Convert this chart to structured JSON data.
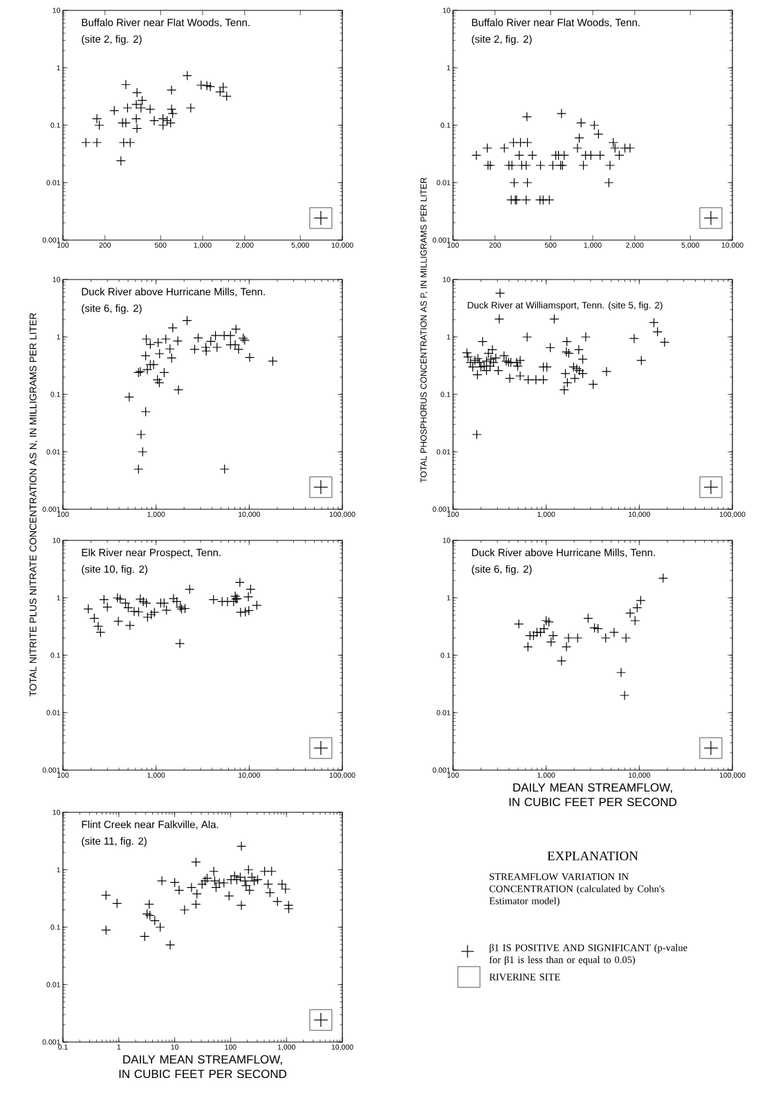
{
  "chart_data": [
    {
      "type": "scatter",
      "title": "Buffalo River near Flat Woods, Tenn.",
      "subtitle": "(site 2, fig. 2)",
      "color": "#000000",
      "marker": "cross",
      "log": "xy",
      "xlim": [
        100,
        10000
      ],
      "ylim": [
        0.001,
        10
      ],
      "xticks": [
        100,
        200,
        500,
        {
          "value": 1000,
          "label": "1,000"
        },
        {
          "value": 2000,
          "label": "2,000"
        },
        {
          "value": 5000,
          "label": "5,000"
        },
        {
          "value": 10000,
          "label": "10,000"
        }
      ],
      "yticks": [
        0.001,
        0.01,
        0.1,
        1,
        10
      ],
      "x": [
        146,
        175,
        175,
        182,
        233,
        282,
        290,
        267,
        282,
        272,
        303,
        260,
        339,
        335,
        335,
        339,
        369,
        362,
        421,
        450,
        520,
        520,
        557,
        599,
        590,
        599,
        610,
        776,
        822,
        975,
        1073,
        1135,
        1334,
        1402,
        1485
      ],
      "values": [
        0.05,
        0.05,
        0.13,
        0.1,
        0.18,
        0.51,
        0.2,
        0.11,
        0.11,
        0.05,
        0.05,
        0.024,
        0.37,
        0.23,
        0.13,
        0.088,
        0.27,
        0.2,
        0.19,
        0.12,
        0.13,
        0.1,
        0.12,
        0.41,
        0.11,
        0.19,
        0.16,
        0.73,
        0.2,
        0.5,
        0.49,
        0.47,
        0.38,
        0.46,
        0.32
      ]
    },
    {
      "type": "scatter",
      "title": "Buffalo River near Flat Woods, Tenn.",
      "subtitle": "(site 2, fig. 2)",
      "color": "#000000",
      "marker": "cross",
      "log": "xy",
      "xlim": [
        100,
        10000
      ],
      "ylim": [
        0.001,
        10
      ],
      "xticks": [
        100,
        200,
        500,
        {
          "value": 1000,
          "label": "1,000"
        },
        {
          "value": 2000,
          "label": "2,000"
        },
        {
          "value": 5000,
          "label": "5,000"
        },
        {
          "value": 10000,
          "label": "10,000"
        }
      ],
      "yticks": [
        0.001,
        0.01,
        0.1,
        1,
        10
      ],
      "x": [
        147,
        176,
        178,
        185,
        233,
        251,
        264,
        271,
        274,
        261,
        279,
        285,
        298,
        304,
        310,
        334,
        338,
        341,
        341,
        334,
        370,
        423,
        420,
        442,
        489,
        518,
        544,
        569,
        590,
        608,
        625,
        598,
        778,
        801,
        826,
        858,
        889,
        970,
        1027,
        1099,
        1130,
        1330,
        1305,
        1403,
        1444,
        1550,
        1700,
        1850
      ],
      "values": [
        0.03,
        0.04,
        0.02,
        0.02,
        0.04,
        0.02,
        0.02,
        0.05,
        0.01,
        0.005,
        0.005,
        0.005,
        0.03,
        0.05,
        0.02,
        0.02,
        0.14,
        0.05,
        0.01,
        0.005,
        0.03,
        0.02,
        0.005,
        0.005,
        0.005,
        0.02,
        0.03,
        0.03,
        0.02,
        0.02,
        0.03,
        0.16,
        0.04,
        0.06,
        0.11,
        0.02,
        0.03,
        0.03,
        0.1,
        0.07,
        0.03,
        0.02,
        0.01,
        0.05,
        0.04,
        0.03,
        0.04,
        0.04
      ]
    },
    {
      "type": "scatter",
      "title": "Duck River above Hurricane Mills, Tenn.",
      "subtitle": "(site 6, fig. 2)",
      "ylabel": "TOTAL NITRITE PLUS NITRATE CONCENTRATION AS N, IN MILLIGRAMS PER LITER",
      "color": "#000000",
      "marker": "cross",
      "log": "xy",
      "xlim": [
        100,
        100000
      ],
      "ylim": [
        0.001,
        10
      ],
      "xticks": [
        100,
        {
          "value": 1000,
          "label": "1,000"
        },
        {
          "value": 10000,
          "label": "10,000"
        },
        {
          "value": 100000,
          "label": "100,000"
        }
      ],
      "yticks": [
        0.001,
        0.01,
        0.1,
        1,
        10
      ],
      "x": [
        515,
        647,
        678,
        773,
        690,
        718,
        647,
        773,
        806,
        867,
        940,
        785,
        867,
        1052,
        1090,
        1035,
        1084,
        1222,
        1272,
        1410,
        1470,
        1510,
        1711,
        1740,
        2152,
        2597,
        2830,
        3420,
        3457,
        3870,
        4345,
        4510,
        5390,
        5440,
        6293,
        6293,
        7064,
        7200,
        7690,
        8610,
        8950,
        10120,
        17900
      ],
      "values": [
        0.09,
        0.24,
        0.25,
        0.05,
        0.02,
        0.01,
        0.005,
        0.47,
        0.27,
        0.33,
        0.33,
        0.92,
        0.74,
        0.8,
        0.51,
        0.18,
        0.16,
        0.24,
        0.92,
        0.62,
        0.43,
        1.44,
        0.85,
        0.12,
        1.93,
        0.61,
        0.96,
        0.66,
        0.57,
        0.84,
        1.06,
        0.66,
        1.06,
        0.005,
        1.06,
        0.73,
        0.73,
        1.37,
        0.61,
        0.95,
        0.88,
        0.44,
        0.38
      ]
    },
    {
      "type": "scatter",
      "title": "Duck River at Williamsport, Tenn. (site 5, fig. 2)",
      "ylabel": "TOTAL PHOSPHORUS CONCENTRATION AS P, IN MILLIGRAMS PER LITER",
      "color": "#000000",
      "marker": "cross",
      "log": "xy",
      "xlim": [
        100,
        100000
      ],
      "ylim": [
        0.001,
        10
      ],
      "xticks": [
        100,
        {
          "value": 1000,
          "label": "1,000"
        },
        {
          "value": 10000,
          "label": "10,000"
        },
        {
          "value": 100000,
          "label": "100,000"
        }
      ],
      "yticks": [
        0.001,
        0.01,
        0.1,
        1,
        10
      ],
      "x": [
        141,
        145,
        154,
        163,
        172,
        183,
        185,
        180,
        193,
        199,
        208,
        216,
        229,
        229,
        240,
        250,
        255,
        265,
        272,
        288,
        306,
        320,
        314,
        353,
        373,
        395,
        418,
        407,
        483,
        495,
        526,
        526,
        625,
        642,
        777,
        933,
        933,
        1017,
        1109,
        1222,
        1563,
        1610,
        1690,
        1650,
        1670,
        1750,
        1970,
        2030,
        2130,
        2240,
        2270,
        2470,
        2470,
        2660,
        3200,
        4450,
        8810,
        10520,
        14360,
        15700,
        18670
      ],
      "values": [
        0.53,
        0.45,
        0.36,
        0.3,
        0.39,
        0.22,
        0.42,
        0.02,
        0.36,
        0.3,
        0.83,
        0.31,
        0.38,
        0.26,
        0.52,
        0.31,
        0.41,
        0.6,
        0.36,
        0.43,
        0.26,
        5.8,
        2.05,
        0.47,
        0.38,
        0.36,
        0.36,
        0.19,
        0.36,
        0.31,
        0.39,
        0.21,
        1.0,
        0.18,
        0.18,
        0.18,
        0.3,
        0.3,
        0.65,
        2.05,
        0.12,
        0.23,
        0.16,
        0.55,
        0.83,
        0.52,
        0.3,
        0.19,
        0.28,
        0.6,
        0.26,
        0.23,
        0.41,
        1.0,
        0.15,
        0.25,
        0.94,
        0.39,
        1.78,
        1.23,
        0.81
      ]
    },
    {
      "type": "scatter",
      "title": "Elk River near Prospect, Tenn.",
      "subtitle": "(site 10, fig. 2)",
      "color": "#000000",
      "marker": "cross",
      "log": "xy",
      "xlim": [
        100,
        100000
      ],
      "ylim": [
        0.001,
        10
      ],
      "xticks": [
        100,
        {
          "value": 1000,
          "label": "1,000"
        },
        {
          "value": 10000,
          "label": "10,000"
        },
        {
          "value": 100000,
          "label": "100,000"
        }
      ],
      "yticks": [
        0.001,
        0.01,
        0.1,
        1,
        10
      ],
      "x": [
        187,
        217,
        239,
        253,
        276,
        300,
        393,
        385,
        412,
        470,
        503,
        524,
        581,
        650,
        677,
        730,
        787,
        810,
        890,
        960,
        1122,
        1220,
        1294,
        1540,
        1670,
        1822,
        1880,
        1800,
        2046,
        2295,
        4140,
        5120,
        5850,
        6810,
        7200,
        7080,
        7420,
        7940,
        8080,
        9080,
        9790,
        9900,
        10350,
        12070
      ],
      "values": [
        0.64,
        0.44,
        0.32,
        0.25,
        0.93,
        0.69,
        0.39,
        1.0,
        0.95,
        0.81,
        0.67,
        0.33,
        0.58,
        0.57,
        0.95,
        0.86,
        0.81,
        0.46,
        0.51,
        0.56,
        0.81,
        0.81,
        0.61,
        0.97,
        0.86,
        0.69,
        0.64,
        0.16,
        0.65,
        1.41,
        0.93,
        0.86,
        0.86,
        0.86,
        0.95,
        1.07,
        0.97,
        1.86,
        0.56,
        0.57,
        1.04,
        0.6,
        1.41,
        0.74
      ]
    },
    {
      "type": "scatter",
      "title": "Duck River above Hurricane Mills, Tenn.",
      "subtitle": "(site 6, fig. 2)",
      "xlabel": "DAILY MEAN STREAMFLOW, IN CUBIC FEET PER SECOND",
      "color": "#000000",
      "marker": "cross",
      "log": "xy",
      "xlim": [
        100,
        100000
      ],
      "ylim": [
        0.001,
        10
      ],
      "xticks": [
        100,
        {
          "value": 1000,
          "label": "1,000"
        },
        {
          "value": 10000,
          "label": "10,000"
        },
        {
          "value": 100000,
          "label": "100,000"
        }
      ],
      "yticks": [
        0.001,
        0.01,
        0.1,
        1,
        10
      ],
      "x": [
        509,
        638,
        671,
        732,
        798,
        871,
        949,
        1000,
        1070,
        1130,
        1189,
        1463,
        1652,
        1740,
        2178,
        2825,
        3303,
        3600,
        4355,
        5360,
        6380,
        6950,
        7200,
        7980,
        9000,
        9490,
        10350,
        18030
      ],
      "values": [
        0.35,
        0.14,
        0.22,
        0.22,
        0.25,
        0.25,
        0.29,
        0.4,
        0.38,
        0.17,
        0.22,
        0.08,
        0.14,
        0.2,
        0.2,
        0.44,
        0.3,
        0.29,
        0.2,
        0.25,
        0.05,
        0.02,
        0.2,
        0.54,
        0.4,
        0.67,
        0.9,
        2.2
      ]
    },
    {
      "type": "scatter",
      "title": "Flint Creek near Falkville, Ala.",
      "subtitle": "(site 11, fig. 2)",
      "xlabel": "DAILY MEAN STREAMFLOW, IN CUBIC FEET PER SECOND",
      "color": "#000000",
      "marker": "cross",
      "log": "xy",
      "xlim": [
        0.1,
        10000
      ],
      "ylim": [
        0.001,
        10
      ],
      "xticks": [
        0.1,
        1,
        10,
        100,
        {
          "value": 1000,
          "label": "1,000"
        },
        {
          "value": 10000,
          "label": "10,000"
        }
      ],
      "yticks": [
        0.001,
        0.01,
        0.1,
        1,
        10
      ],
      "x": [
        0.59,
        0.59,
        0.93,
        2.9,
        3.2,
        3.5,
        3.6,
        4.4,
        5.5,
        5.9,
        8.3,
        10,
        12,
        15,
        20,
        24,
        24,
        25,
        31,
        35,
        38,
        50,
        52,
        55,
        63,
        76,
        94,
        102,
        118,
        129,
        149,
        156,
        156,
        181,
        190,
        209,
        218,
        241,
        264,
        305,
        407,
        470,
        507,
        542,
        689,
        834,
        962,
        1089,
        1100
      ],
      "values": [
        0.36,
        0.089,
        0.26,
        0.069,
        0.17,
        0.25,
        0.16,
        0.13,
        0.1,
        0.64,
        0.049,
        0.6,
        0.44,
        0.2,
        0.49,
        1.36,
        0.25,
        0.38,
        0.56,
        0.64,
        0.71,
        0.94,
        0.64,
        0.49,
        0.59,
        0.59,
        0.35,
        0.67,
        0.78,
        0.67,
        0.74,
        2.56,
        0.24,
        0.64,
        0.53,
        1.0,
        0.44,
        0.74,
        0.64,
        0.67,
        0.94,
        0.56,
        0.4,
        0.94,
        0.28,
        0.56,
        0.46,
        0.24,
        0.21
      ]
    },
    {
      "type": "other",
      "title": "EXPLANATION",
      "annotations": [
        "STREAMFLOW VARIATION IN CONCENTRATION (calculated by Cohn's Estimator model)",
        "β1 IS POSITIVE AND SIGNIFICANT (p-value for β1 is less than or equal to 0.05)",
        "RIVERINE SITE"
      ]
    }
  ]
}
